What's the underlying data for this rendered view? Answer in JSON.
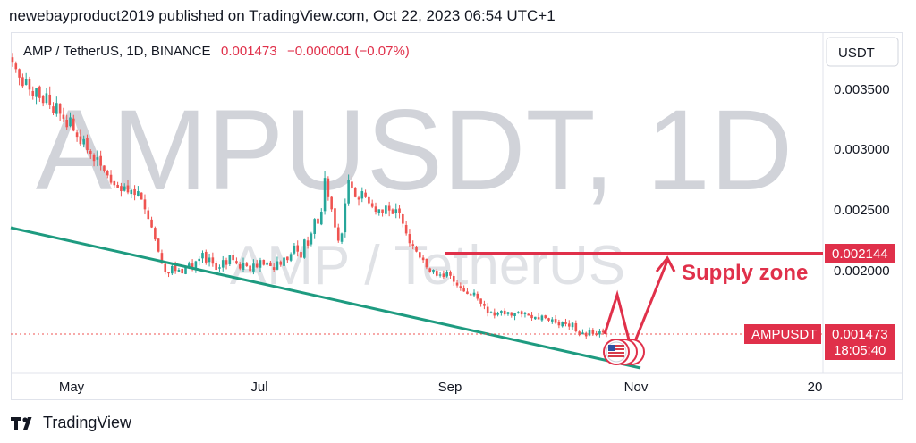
{
  "header": {
    "publish_line": "newebayproduct2019 published on TradingView.com, Oct 22, 2023 06:54 UTC+1"
  },
  "legend": {
    "symbol_line": "AMP / TetherUS, 1D, BINANCE",
    "price": "0.001473",
    "change": "−0.000001 (−0.07%)"
  },
  "currency_button": "USDT",
  "watermark": {
    "main": "AMPUSDT, 1D",
    "sub": "AMP / TetherUS"
  },
  "price_axis": {
    "ticks": [
      "0.003500",
      "0.003000",
      "0.002500",
      "0.002000"
    ]
  },
  "time_axis": {
    "ticks": [
      "May",
      "Jul",
      "Sep",
      "Nov",
      "20"
    ]
  },
  "badges": {
    "level_price": "0.002144",
    "symbol_tag": "AMPUSDT",
    "last_price": "0.001473",
    "countdown": "18:05:40"
  },
  "annotation": {
    "label": "Supply zone"
  },
  "footer": {
    "brand": "TradingView"
  },
  "colors": {
    "up": "#26a69a",
    "down": "#ef5350",
    "trendline": "#1e9b80",
    "annotation": "#e0304a"
  },
  "chart_data": {
    "type": "candlestick",
    "symbol": "AMP / TetherUS",
    "interval": "1D",
    "exchange": "BINANCE",
    "last_price": 0.001473,
    "change": -1e-06,
    "change_percent": -0.07,
    "ylim": [
      0.00125,
      0.0037
    ],
    "y_ticks": [
      0.0035,
      0.003,
      0.0025,
      0.002
    ],
    "x_ticks": [
      "May",
      "Jul",
      "Sep",
      "Nov",
      "20"
    ],
    "marked_level": 0.002144,
    "closes": [
      0.00372,
      0.00366,
      0.00359,
      0.00352,
      0.00358,
      0.00349,
      0.00344,
      0.0035,
      0.00342,
      0.00338,
      0.00346,
      0.00336,
      0.0033,
      0.00338,
      0.00329,
      0.00325,
      0.00318,
      0.00326,
      0.00315,
      0.0031,
      0.00304,
      0.00308,
      0.00299,
      0.00296,
      0.0029,
      0.00293,
      0.00286,
      0.00282,
      0.00278,
      0.00272,
      0.0027,
      0.00268,
      0.00265,
      0.00269,
      0.00264,
      0.00266,
      0.00262,
      0.00265,
      0.00258,
      0.0025,
      0.00242,
      0.00235,
      0.00225,
      0.00215,
      0.00205,
      0.00198,
      0.00197,
      0.00203,
      0.00199,
      0.002,
      0.00197,
      0.00202,
      0.00205,
      0.00201,
      0.00207,
      0.00209,
      0.00214,
      0.00206,
      0.0021,
      0.00205,
      0.002,
      0.00202,
      0.00208,
      0.00204,
      0.00212,
      0.00208,
      0.00205,
      0.00201,
      0.00206,
      0.00203,
      0.00199,
      0.00205,
      0.00202,
      0.00208,
      0.00204,
      0.00206,
      0.00203,
      0.002,
      0.00207,
      0.00204,
      0.0021,
      0.00208,
      0.00213,
      0.0022,
      0.00215,
      0.0021,
      0.00225,
      0.0022,
      0.0023,
      0.00242,
      0.00238,
      0.00248,
      0.00276,
      0.0026,
      0.0025,
      0.00235,
      0.00224,
      0.0023,
      0.00255,
      0.00274,
      0.00268,
      0.0026,
      0.00258,
      0.00265,
      0.0026,
      0.00255,
      0.00252,
      0.00248,
      0.0025,
      0.00247,
      0.00253,
      0.00249,
      0.00246,
      0.0025,
      0.00247,
      0.00238,
      0.0023,
      0.00222,
      0.0022,
      0.00215,
      0.0021,
      0.00208,
      0.00202,
      0.00198,
      0.002,
      0.00195,
      0.00196,
      0.00194,
      0.00198,
      0.00195,
      0.0019,
      0.00187,
      0.00185,
      0.00182,
      0.0018,
      0.00179,
      0.00181,
      0.00176,
      0.00172,
      0.0017,
      0.00164,
      0.00165,
      0.00162,
      0.00164,
      0.00166,
      0.00163,
      0.00165,
      0.00162,
      0.00164,
      0.00165,
      0.00163,
      0.00164,
      0.00162,
      0.0016,
      0.00161,
      0.00159,
      0.00162,
      0.0016,
      0.00158,
      0.00159,
      0.00156,
      0.00154,
      0.00157,
      0.00155,
      0.00153,
      0.00156,
      0.00149,
      0.00146,
      0.00148,
      0.00145,
      0.0015,
      0.00147,
      0.00146,
      0.00149,
      0.00148,
      0.001473
    ]
  }
}
